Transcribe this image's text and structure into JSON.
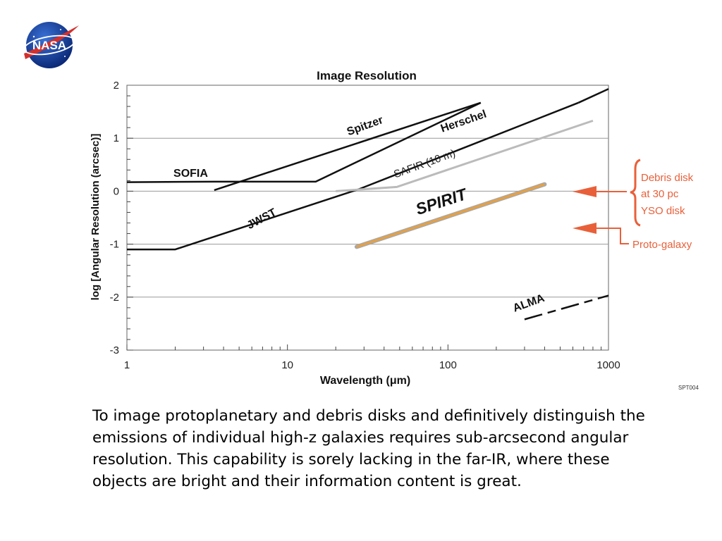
{
  "logo": {
    "text": "NASA"
  },
  "chart_data": {
    "type": "line",
    "title": "Image Resolution",
    "xlabel": "Wavelength (μm)",
    "ylabel": "log [Angular Resolution (arcsec)]",
    "xscale": "log",
    "xlim": [
      1,
      1000
    ],
    "ylim": [
      -3,
      2
    ],
    "x_ticks": [
      1,
      10,
      100,
      1000
    ],
    "x_tick_labels": [
      "1",
      "10",
      "100",
      "1000"
    ],
    "y_ticks": [
      2,
      1,
      0,
      -1,
      -2,
      -3
    ],
    "y_tick_labels": [
      "2",
      "1",
      "0",
      "-1",
      "-2",
      "-3"
    ],
    "grid": "horizontal",
    "series": [
      {
        "name": "SOFIA",
        "color": "#111111",
        "x": [
          1,
          3.5,
          15,
          160
        ],
        "y": [
          0.17,
          0.18,
          0.18,
          1.67
        ]
      },
      {
        "name": "Spitzer",
        "color": "#111111",
        "x": [
          3.5,
          160
        ],
        "y": [
          0.02,
          1.67
        ]
      },
      {
        "name": "JWST",
        "color": "#111111",
        "x": [
          1,
          2,
          28
        ],
        "y": [
          -1.1,
          -1.1,
          0.04
        ]
      },
      {
        "name": "Herschel",
        "color": "#111111",
        "x": [
          28,
          650
        ],
        "y": [
          0.04,
          1.67
        ]
      },
      {
        "name": "",
        "color": "#111111",
        "x": [
          650,
          1000
        ],
        "y": [
          1.67,
          1.93
        ]
      },
      {
        "name": "SAFIR (10 m)",
        "color": "#bbbbbb",
        "x": [
          20,
          48,
          800
        ],
        "y": [
          0.0,
          0.08,
          1.33
        ]
      },
      {
        "name": "SPIRIT",
        "color": "#e8a040",
        "x": [
          27,
          400
        ],
        "y": [
          -1.05,
          0.13
        ]
      },
      {
        "name": "ALMA",
        "color": "#111111",
        "x": [
          300,
          1000
        ],
        "y": [
          -2.42,
          -1.97
        ]
      }
    ],
    "annotations": [
      {
        "text": "Debris disk"
      },
      {
        "text": "at 30 pc"
      },
      {
        "text": "YSO disk"
      },
      {
        "text": "Proto-galaxy"
      }
    ],
    "annotation_color": "#e8603a"
  },
  "code": "SPT004",
  "paragraph": "To image protoplanetary and debris disks and definitively distinguish the emissions of individual high-z galaxies requires sub-arcsecond angular resolution. This capability is sorely lacking in the far-IR, where these objects are bright and their information content is great."
}
